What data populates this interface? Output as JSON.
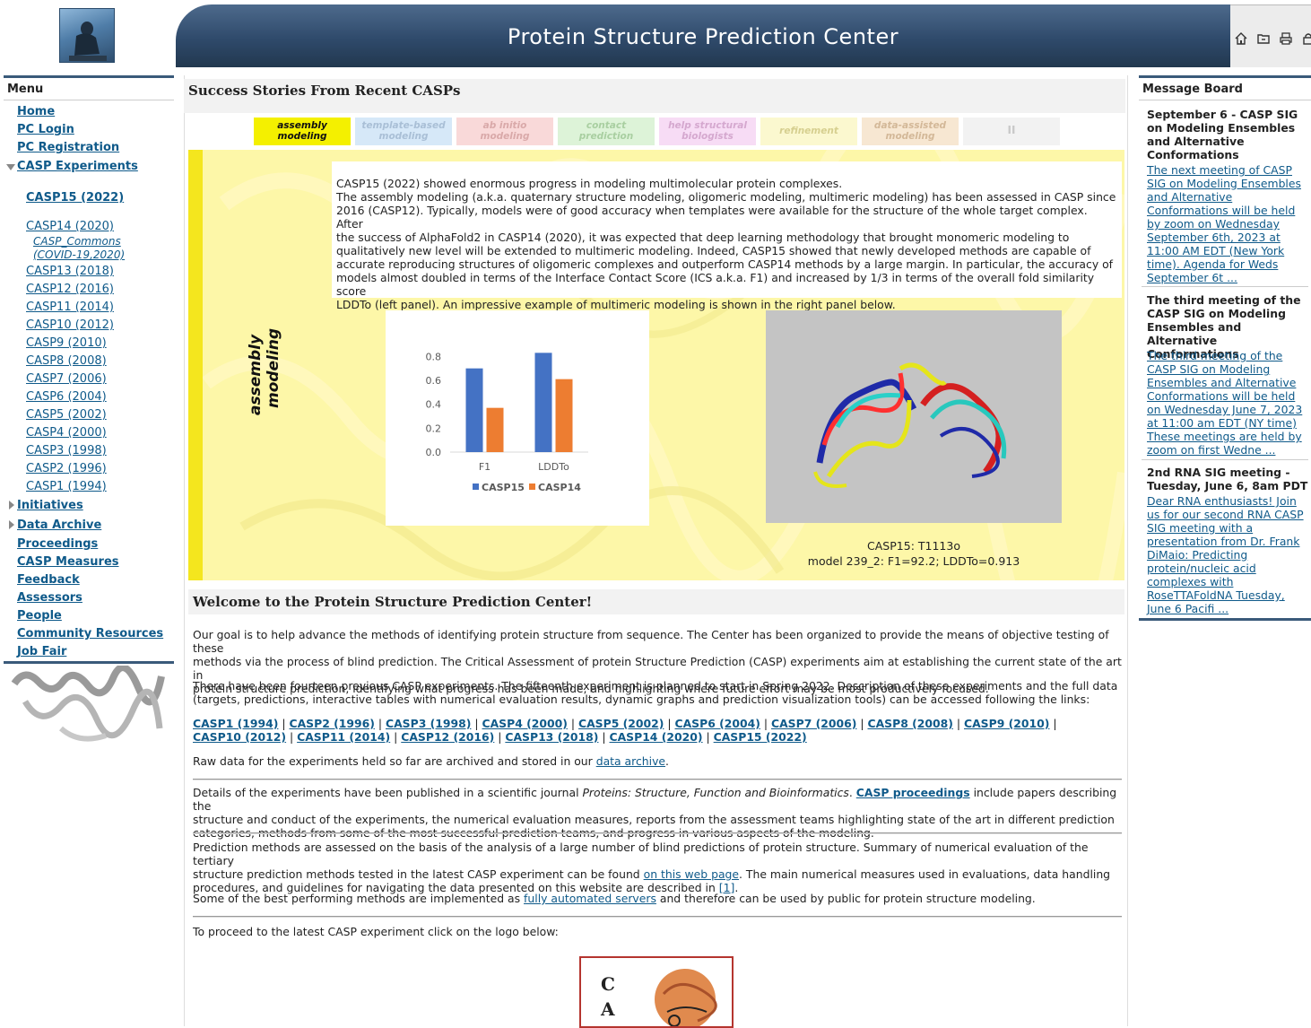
{
  "header": {
    "title": "Protein Structure Prediction Center",
    "tools": [
      "home-icon",
      "folder-icon",
      "print-icon",
      "lock-icon"
    ]
  },
  "menu": {
    "title": "Menu",
    "home": "Home",
    "pc_login": "PC Login",
    "pc_registration": "PC Registration",
    "casp_experiments": "CASP Experiments",
    "casp15": "CASP15 (2022)",
    "casp14": "CASP14 (2020)",
    "casp_commons_1": "CASP_Commons",
    "casp_commons_2": "(COVID-19,2020)",
    "experiments": [
      "CASP13 (2018)",
      "CASP12 (2016)",
      "CASP11 (2014)",
      "CASP10 (2012)",
      "CASP9 (2010)",
      "CASP8 (2008)",
      "CASP7 (2006)",
      "CASP6 (2004)",
      "CASP5 (2002)",
      "CASP4 (2000)",
      "CASP3 (1998)",
      "CASP2 (1996)",
      "CASP1 (1994)"
    ],
    "initiatives": "Initiatives",
    "data_archive": "Data Archive",
    "links": [
      "Proceedings",
      "CASP Measures",
      "Feedback",
      "Assessors",
      "People",
      "Community Resources",
      "Job Fair"
    ]
  },
  "stories": {
    "title": "Success Stories From Recent CASPs",
    "tabs": [
      {
        "line1": "assembly",
        "line2": "modeling",
        "bg": "#f4f000",
        "fg": "#111111"
      },
      {
        "line1": "template-based",
        "line2": "modeling",
        "bg": "#d6e8f8",
        "fg": "#a9bfd6"
      },
      {
        "line1": "ab initio",
        "line2": "modeling",
        "bg": "#f9d9d9",
        "fg": "#d9a9a9"
      },
      {
        "line1": "contact",
        "line2": "prediction",
        "bg": "#ddf3d8",
        "fg": "#a9cfa1"
      },
      {
        "line1": "help structural",
        "line2": "biologists",
        "bg": "#f7dcf5",
        "fg": "#d5a8cf"
      },
      {
        "line1": "refinement",
        "line2": "",
        "bg": "#fbf8cf",
        "fg": "#d6cf8f"
      },
      {
        "line1": "data-assisted",
        "line2": "modeling",
        "bg": "#f7e7d2",
        "fg": "#d3b898"
      },
      {
        "line1": "II",
        "line2": "",
        "bg": "#f2f2f2",
        "fg": "#c8c8c8"
      }
    ],
    "vertical_label_1": "assembly",
    "vertical_label_2": "modeling",
    "text_lines": [
      "CASP15 (2022) showed enormous progress in modeling multimolecular protein complexes.",
      "The assembly modeling (a.k.a. quaternary structure modeling, oligomeric modeling, multimeric modeling) has been assessed in CASP since",
      "2016 (CASP12). Typically, models were of good accuracy when templates were available for the structure of the whole target complex. After",
      "the success of AlphaFold2 in CASP14 (2020), it was expected that deep learning methodology that brought monomeric modeling to",
      "qualitatively new level will be extended to multimeric modeling. Indeed, CASP15 showed that newly developed methods are capable of",
      "accurate reproducing structures of oligomeric complexes and outperform CASP14 methods by a large margin. In particular, the accuracy of",
      "models almost doubled in terms of the Interface Contact Score (ICS a.k.a. F1) and increased by 1/3 in terms of the overall fold similarity score",
      "LDDTo (left panel). An impressive example of multimeric modeling is shown in the right panel below."
    ],
    "caption_1": "CASP15: T1113o",
    "caption_2": "model 239_2: F1=92.2; LDDTo=0.913"
  },
  "chart_data": {
    "type": "bar",
    "categories": [
      "F1",
      "LDDTo"
    ],
    "series": [
      {
        "name": "CASP15",
        "values": [
          0.7,
          0.83
        ],
        "color": "#4472c4"
      },
      {
        "name": "CASP14",
        "values": [
          0.37,
          0.61
        ],
        "color": "#ed7d31"
      }
    ],
    "yticks": [
      "0.0",
      "0.2",
      "0.4",
      "0.6",
      "0.8"
    ],
    "ylim": [
      0,
      0.9
    ],
    "legend": "bottom",
    "grid": false
  },
  "welcome": {
    "title": "Welcome to the Protein Structure Prediction Center!",
    "p1_lines": [
      "Our goal is to help advance the methods of identifying protein structure from sequence. The Center has been organized to provide the means of objective testing of these",
      "methods via the process of blind prediction. The Critical Assessment of protein Structure Prediction (CASP) experiments aim at establishing the current state of the art in",
      "protein structure prediction, identifying what progress has been made, and highlighting where future effort may be most productively focused."
    ],
    "p2_lines": [
      "There have been fourteen previous CASP experiments. The fifteenth experiment is planned to start in Spring 2022. Description of these experiments and the full data",
      "(targets, predictions, interactive tables with numerical evaluation results, dynamic graphs and prediction visualization tools) can be accessed following the links:"
    ],
    "links_row1": [
      "CASP1 (1994)",
      "CASP2 (1996)",
      "CASP3 (1998)",
      "CASP4 (2000)",
      "CASP5 (2002)",
      "CASP6 (2004)",
      "CASP7 (2006)",
      "CASP8 (2008)",
      "CASP9 (2010)"
    ],
    "links_row2": [
      "CASP10 (2012)",
      "CASP11 (2014)",
      "CASP12 (2016)",
      "CASP13 (2018)",
      "CASP14 (2020)",
      "CASP15 (2022)"
    ],
    "separator": "|",
    "p3_pre": "Raw data for the experiments held so far are archived and stored in our ",
    "p3_link": "data archive",
    "p3_post": ".",
    "p4_pre": "Details of the experiments have been published in a scientific journal ",
    "p4_journal": "Proteins: Structure, Function and Bioinformatics",
    "p4_mid": ". ",
    "p4_link": "CASP proceedings",
    "p4_post": " include papers describing the",
    "p4_line2": "structure and conduct of the experiments, the numerical evaluation measures, reports from the assessment teams highlighting state of the art in different prediction",
    "p4_line3": "categories, methods from some of the most successful prediction teams, and progress in various aspects of the modeling.",
    "p5_line1": "Prediction methods are assessed on the basis of the analysis of a large number of blind predictions of protein structure. Summary of numerical evaluation of the tertiary",
    "p5_pre2": "structure prediction methods tested in the latest CASP experiment can be found ",
    "p5_link1": "on this web page",
    "p5_post2": ". The main numerical measures used in evaluations, data handling",
    "p5_pre3": "procedures, and guidelines for navigating the data presented on this website are described in ",
    "p5_link2": "[1]",
    "p5_post3": ".",
    "p6_pre": "Some of the best performing methods are implemented as ",
    "p6_link": "fully automated servers",
    "p6_post": " and therefore can be used by public for protein structure modeling.",
    "p7": "To proceed to the latest CASP experiment click on the logo below:",
    "logo_letters": [
      "C",
      "A"
    ]
  },
  "board": {
    "title": "Message Board",
    "messages": [
      {
        "head": [
          "September 6 - CASP SIG",
          "on Modeling Ensembles",
          "and Alternative",
          "Conformations"
        ],
        "body": [
          "The next meeting of CASP",
          "SIG on Modeling Ensembles",
          "and Alternative",
          "Conformations will be held",
          "by zoom on Wednesday",
          "September 6th, 2023 at",
          "11:00 AM EDT (New York",
          "time). Agenda for Weds",
          "September 6t ..."
        ]
      },
      {
        "head": [
          "The third meeting of the",
          "CASP SIG on Modeling",
          "Ensembles and",
          "Alternative Conformations"
        ],
        "body": [
          "The third meeting of the",
          "CASP SIG on Modeling",
          "Ensembles and Alternative",
          "Conformations will be held",
          "on Wednesday June 7, 2023",
          "at 11:00 am EDT (NY time)",
          "These meetings are held by",
          "zoom on first Wedne ..."
        ]
      },
      {
        "head": [
          "2nd RNA SIG meeting -",
          "Tuesday, June 6, 8am PDT"
        ],
        "body": [
          "Dear RNA enthusiasts! Join",
          "us for our second RNA CASP",
          "SIG meeting with a",
          "presentation from Dr. Frank",
          "DiMaio: Predicting",
          "protein/nucleic acid",
          "complexes with",
          "RoseTTAFoldNA Tuesday,",
          "June 6 Pacifi ..."
        ]
      }
    ]
  }
}
